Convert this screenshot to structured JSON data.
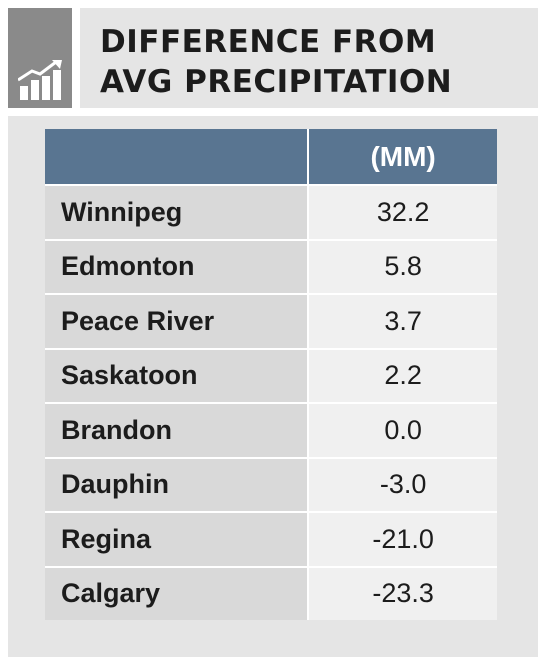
{
  "header": {
    "title_line1": "DIFFERENCE FROM",
    "title_line2": "AVG PRECIPITATION",
    "icon": "bar-chart-trend-icon"
  },
  "table": {
    "columns": [
      "",
      "(MM)"
    ],
    "rows": [
      {
        "city": "Winnipeg",
        "value": "32.2"
      },
      {
        "city": "Edmonton",
        "value": "5.8"
      },
      {
        "city": "Peace River",
        "value": "3.7"
      },
      {
        "city": "Saskatoon",
        "value": "2.2"
      },
      {
        "city": "Brandon",
        "value": "0.0"
      },
      {
        "city": "Dauphin",
        "value": "-3.0"
      },
      {
        "city": "Regina",
        "value": "-21.0"
      },
      {
        "city": "Calgary",
        "value": "-23.3"
      }
    ]
  },
  "colors": {
    "header_fill": "#597591",
    "icon_box": "#8a8a8a",
    "title_box": "#e5e5e5"
  }
}
